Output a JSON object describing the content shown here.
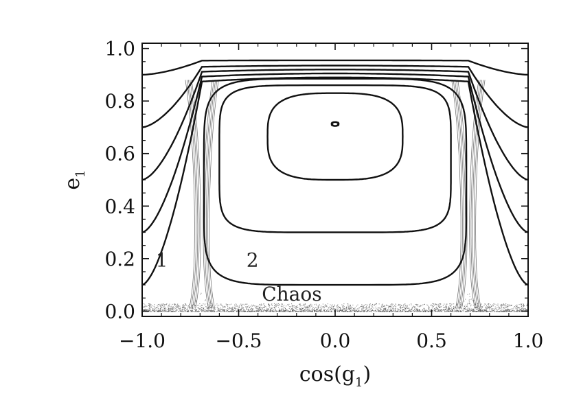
{
  "chart_data": {
    "type": "line",
    "xlabel": "cos(g",
    "xlabel_sub": "1",
    "xlabel_close": ")",
    "ylabel": "e",
    "ylabel_sub": "1",
    "xlim": [
      -1.0,
      1.0
    ],
    "ylim": [
      -0.02,
      1.02
    ],
    "grid": false,
    "xticks": [
      -1.0,
      -0.5,
      0.0,
      0.5,
      1.0
    ],
    "xtick_labels": [
      "−1.0",
      "−0.5",
      "0.0",
      "0.5",
      "1.0"
    ],
    "yticks": [
      0.0,
      0.2,
      0.4,
      0.6,
      0.8,
      1.0
    ],
    "ytick_labels": [
      "0.0",
      "0.2",
      "0.4",
      "0.6",
      "0.8",
      "1.0"
    ],
    "annotations": [
      {
        "text": "1",
        "x": -0.93,
        "y": 0.17
      },
      {
        "text": "2",
        "x": -0.46,
        "y": 0.17
      },
      {
        "text": "Chaos",
        "x": -0.38,
        "y": 0.04
      }
    ],
    "outer_curves": [
      {
        "e_edge": 0.9,
        "e_top": 0.955
      },
      {
        "e_edge": 0.7,
        "e_top": 0.935
      },
      {
        "e_edge": 0.5,
        "e_top": 0.92
      },
      {
        "e_edge": 0.3,
        "e_top": 0.905
      },
      {
        "e_edge": 0.1,
        "e_top": 0.89
      }
    ],
    "inner_curves": [
      {
        "e_min": 0.1,
        "e_max": 0.885,
        "half_width": 0.68
      },
      {
        "e_min": 0.3,
        "e_max": 0.86,
        "half_width": 0.6
      },
      {
        "e_min": 0.5,
        "e_max": 0.83,
        "half_width": 0.35
      },
      {
        "e_min": 0.705,
        "e_max": 0.72,
        "half_width": 0.018
      }
    ],
    "separatrix": {
      "cos_g": [
        -0.69,
        0.69
      ],
      "e_max": 0.88
    }
  }
}
